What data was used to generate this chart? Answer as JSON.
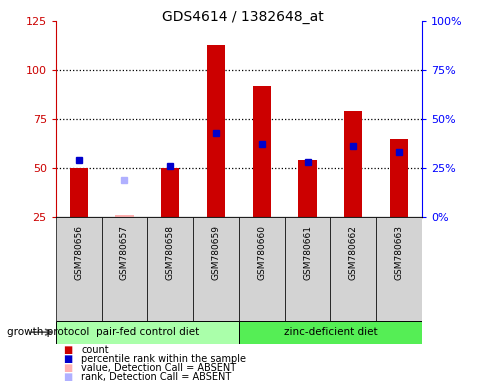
{
  "title": "GDS4614 / 1382648_at",
  "samples": [
    "GSM780656",
    "GSM780657",
    "GSM780658",
    "GSM780659",
    "GSM780660",
    "GSM780661",
    "GSM780662",
    "GSM780663"
  ],
  "count_values": [
    50,
    26,
    50,
    113,
    92,
    54,
    79,
    65
  ],
  "rank_values": [
    54,
    null,
    51,
    68,
    62,
    53,
    61,
    58
  ],
  "absent_count": [
    null,
    26,
    null,
    null,
    null,
    null,
    null,
    null
  ],
  "absent_rank": [
    null,
    44,
    null,
    null,
    null,
    null,
    null,
    null
  ],
  "count_color": "#cc0000",
  "rank_color": "#0000cc",
  "absent_count_color": "#ffb0b0",
  "absent_rank_color": "#b0b0ff",
  "group1_label": "pair-fed control diet",
  "group2_label": "zinc-deficient diet",
  "group1_indices": [
    0,
    1,
    2,
    3
  ],
  "group2_indices": [
    4,
    5,
    6,
    7
  ],
  "group1_color": "#aaffaa",
  "group2_color": "#55ee55",
  "ylim_left": [
    25,
    125
  ],
  "ylim_right": [
    0,
    100
  ],
  "yticks_left": [
    25,
    50,
    75,
    100,
    125
  ],
  "yticks_right": [
    0,
    25,
    50,
    75,
    100
  ],
  "ytick_labels_right": [
    "0%",
    "25%",
    "50%",
    "75%",
    "100%"
  ],
  "hlines": [
    50,
    75,
    100
  ],
  "legend_items": [
    {
      "label": "count",
      "color": "#cc0000"
    },
    {
      "label": "percentile rank within the sample",
      "color": "#0000cc"
    },
    {
      "label": "value, Detection Call = ABSENT",
      "color": "#ffb0b0"
    },
    {
      "label": "rank, Detection Call = ABSENT",
      "color": "#b0b0ff"
    }
  ],
  "bar_width": 0.4,
  "bar_bottom": 25
}
